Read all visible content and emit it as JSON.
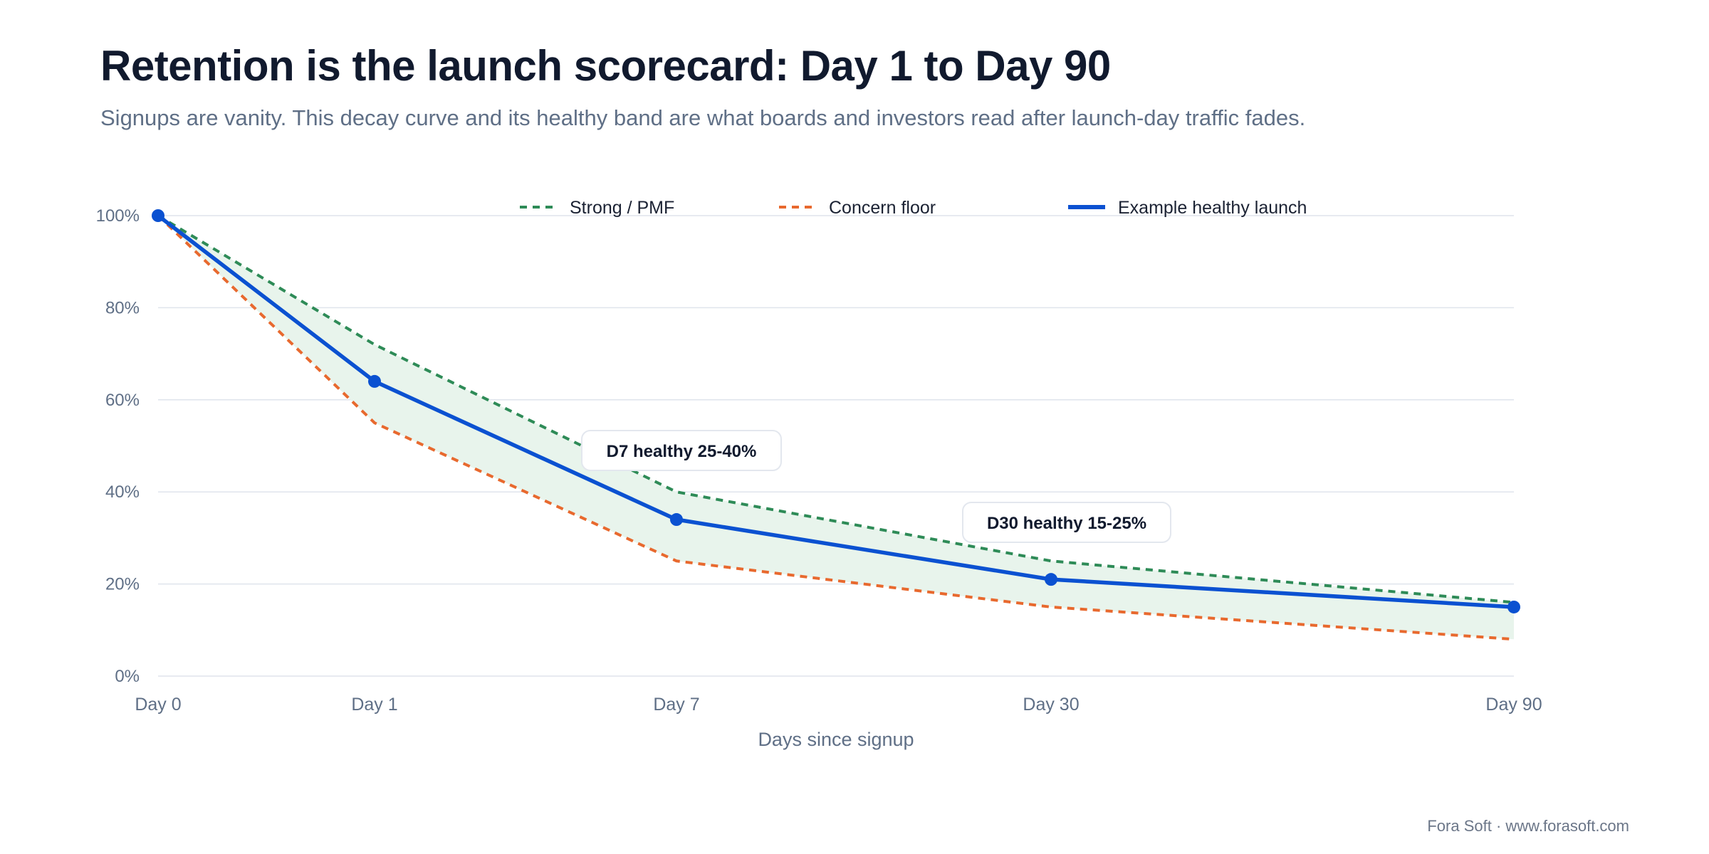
{
  "header": {
    "title": "Retention is the launch scorecard: Day 1 to Day 90",
    "subtitle": "Signups are vanity. This decay curve and its healthy band are what boards and investors read after launch-day traffic fades."
  },
  "footer": {
    "credit": "Fora Soft · www.forasoft.com"
  },
  "colors": {
    "strong": "#2e8b57",
    "floor": "#e8692e",
    "example": "#0b51d1",
    "band": "#e8f4ec",
    "grid": "#dfe4ec",
    "axis_text": "#5f6f86"
  },
  "chart_data": {
    "type": "line",
    "x": [
      "Day 0",
      "Day 1",
      "Day 7",
      "Day 30",
      "Day 90"
    ],
    "x_positions_days": [
      0,
      1,
      7,
      30,
      90
    ],
    "xlabel": "Days since signup",
    "ylabel": "",
    "ylim": [
      0,
      100
    ],
    "yticks": [
      "0%",
      "20%",
      "40%",
      "60%",
      "80%",
      "100%"
    ],
    "grid": true,
    "legend_position": "top",
    "band_between": [
      "Concern floor",
      "Strong / PMF"
    ],
    "series": [
      {
        "name": "Strong / PMF",
        "style": "dashed",
        "values": [
          100,
          72,
          40,
          25,
          16
        ]
      },
      {
        "name": "Concern floor",
        "style": "dashed",
        "values": [
          100,
          55,
          25,
          15,
          8
        ]
      },
      {
        "name": "Example healthy launch",
        "style": "solid",
        "markers": true,
        "values": [
          100,
          64,
          34,
          21,
          15
        ]
      }
    ],
    "annotations": [
      {
        "text": "D7 healthy 25-40%",
        "at": "Day 7"
      },
      {
        "text": "D30 healthy 15-25%",
        "at": "Day 30"
      }
    ]
  }
}
